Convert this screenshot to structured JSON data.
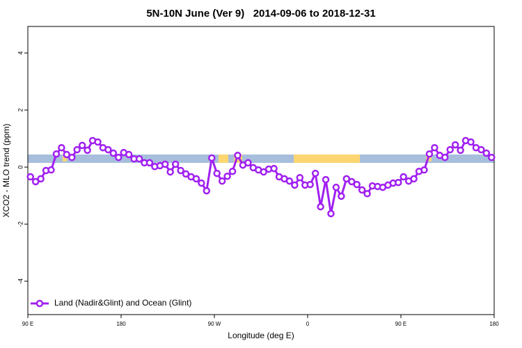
{
  "chart_data": {
    "type": "line",
    "title": "5N-10N June (Ver 9)   2014-09-06 to 2018-12-31",
    "x_label": "Longitude (deg E)",
    "y_label": "XCO2 - MLO trend (ppm)",
    "x": [
      92.5,
      97.5,
      102.5,
      107.5,
      112.5,
      117.5,
      122.5,
      127.5,
      132.5,
      137.5,
      142.5,
      147.5,
      152.5,
      157.5,
      162.5,
      167.5,
      172.5,
      177.5,
      182.5,
      187.5,
      192.5,
      197.5,
      202.5,
      207.5,
      212.5,
      217.5,
      222.5,
      227.5,
      232.5,
      237.5,
      242.5,
      247.5,
      252.5,
      257.5,
      262.5,
      267.5,
      272.5,
      277.5,
      282.5,
      287.5,
      292.5,
      297.5,
      302.5,
      307.5,
      312.5,
      317.5,
      322.5,
      327.5,
      332.5,
      337.5,
      342.5,
      347.5,
      352.5,
      357.5,
      362.5,
      367.5,
      372.5,
      377.5,
      382.5,
      387.5,
      392.5,
      397.5,
      402.5,
      407.5,
      412.5,
      417.5,
      422.5,
      427.5,
      432.5,
      437.5,
      442.5,
      447.5,
      452.5,
      457.5,
      462.5,
      467.5,
      472.5,
      477.5,
      482.5,
      487.5,
      492.5,
      497.5,
      502.5,
      507.5,
      512.5,
      517.5,
      522.5,
      527.5,
      532.5,
      537.5
    ],
    "series": [
      {
        "name": "Land (Nadir&Glint) and Ocean (Glint)",
        "color": "#a020f0",
        "values": [
          -0.34,
          -0.51,
          -0.41,
          -0.12,
          -0.1,
          0.46,
          0.68,
          0.44,
          0.34,
          0.61,
          0.76,
          0.59,
          0.93,
          0.88,
          0.68,
          0.61,
          0.49,
          0.34,
          0.51,
          0.44,
          0.29,
          0.29,
          0.15,
          0.15,
          0.02,
          0.05,
          0.1,
          -0.17,
          0.1,
          -0.12,
          -0.24,
          -0.34,
          -0.41,
          -0.56,
          -0.83,
          0.32,
          -0.22,
          -0.49,
          -0.32,
          -0.15,
          0.41,
          0.07,
          0.15,
          -0.02,
          -0.1,
          -0.17,
          -0.07,
          -0.05,
          -0.34,
          -0.41,
          -0.49,
          -0.63,
          -0.37,
          -0.63,
          -0.61,
          -0.22,
          -1.39,
          -0.44,
          -1.63,
          -0.71,
          -1.02,
          -0.41,
          -0.51,
          -0.61,
          -0.8,
          -0.93,
          -0.66,
          -0.68,
          -0.71,
          -0.63,
          -0.56,
          -0.54,
          -0.34,
          -0.49,
          -0.41,
          -0.15,
          -0.1,
          0.46,
          0.68,
          0.41,
          0.34,
          0.61,
          0.78,
          0.59,
          0.93,
          0.88,
          0.68,
          0.61,
          0.49,
          0.34
        ]
      }
    ],
    "xlim": [
      90,
      540
    ],
    "xticks": [
      {
        "value": 90,
        "label": "90 E"
      },
      180,
      {
        "value": 270,
        "label": "90 W"
      },
      {
        "value": 360,
        "label": "0"
      },
      {
        "value": 450,
        "label": "90 E"
      },
      {
        "value": 540,
        "label": "180"
      }
    ],
    "ylim": [
      -5.17,
      4.93
    ],
    "yticks": [
      4,
      2,
      0,
      -2,
      -4
    ],
    "legend": "bottom-left"
  }
}
